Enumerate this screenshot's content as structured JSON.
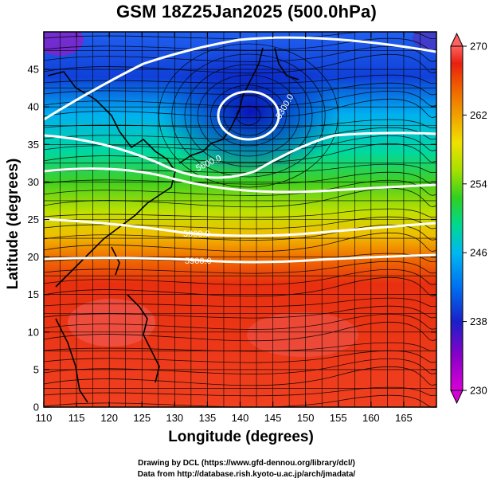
{
  "title": "GSM 18Z25Jan2025 (500.0hPa)",
  "axes": {
    "xlabel": "Longitude (degrees)",
    "ylabel": "Latitude  (degrees)",
    "xticks": [
      "110",
      "115",
      "120",
      "125",
      "130",
      "135",
      "140",
      "145",
      "150",
      "155",
      "160",
      "165"
    ],
    "yticks": [
      "0",
      "5",
      "10",
      "15",
      "20",
      "25",
      "30",
      "35",
      "40",
      "45"
    ],
    "xlim": [
      110,
      170
    ],
    "ylim": [
      0,
      50
    ]
  },
  "colorbar": {
    "labels": [
      "230",
      "238",
      "246",
      "254",
      "262",
      "270"
    ],
    "range": [
      230,
      270
    ],
    "colors": [
      "#d800d8",
      "#8a00c8",
      "#1a20c8",
      "#0070f0",
      "#00b8f0",
      "#00d890",
      "#30d020",
      "#a8e000",
      "#f0e000",
      "#f0a000",
      "#f06000",
      "#e82010",
      "#ff6060"
    ]
  },
  "contours": [
    {
      "label": "5300.0"
    },
    {
      "label": "5600.0"
    },
    {
      "label": "5900.0"
    }
  ],
  "credits": {
    "line1": "Drawing by DCL (https://www.gfd-dennou.org/library/dcl/)",
    "line2": "Data from http://database.rish.kyoto-u.ac.jp/arch/jmadata/"
  }
}
